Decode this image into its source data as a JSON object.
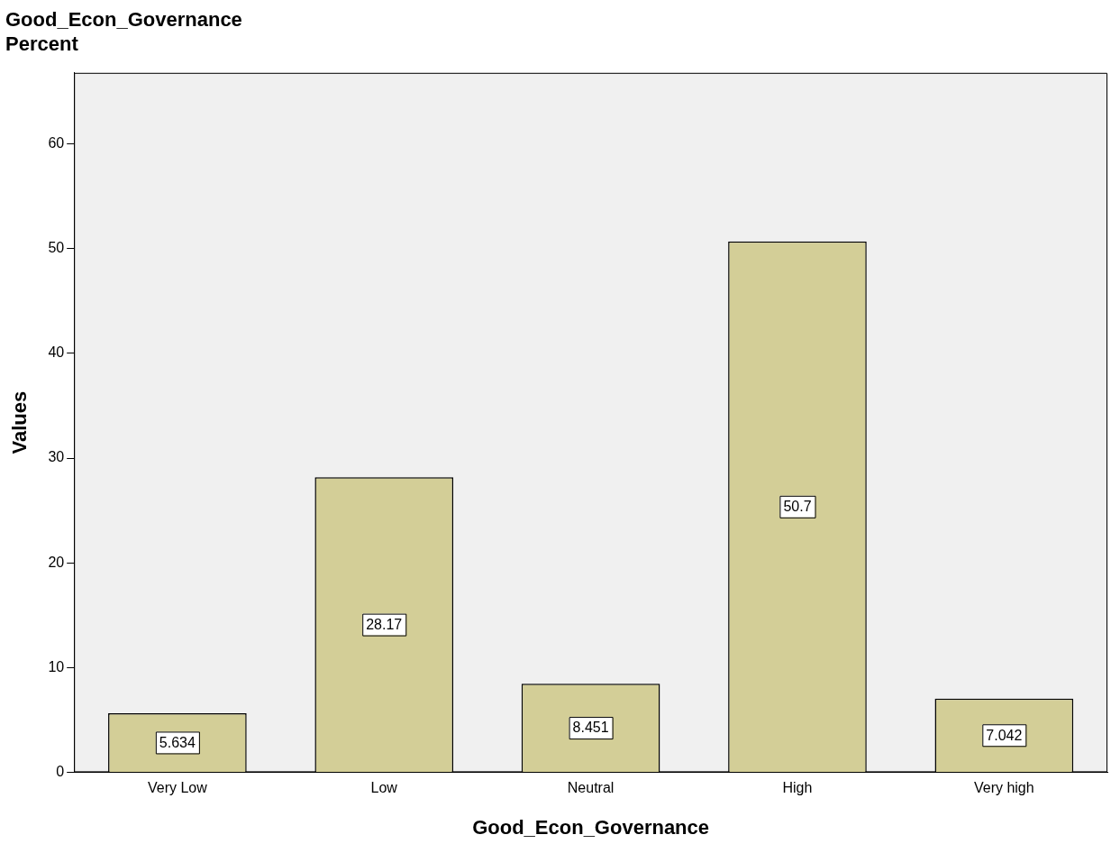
{
  "chart_data": {
    "type": "bar",
    "title": "Good_Econ_Governance",
    "subtitle": "Percent",
    "xlabel": "Good_Econ_Governance",
    "ylabel": "Values",
    "categories": [
      "Very Low",
      "Low",
      "Neutral",
      "High",
      "Very high"
    ],
    "values": [
      5.634,
      28.17,
      8.451,
      50.7,
      7.042
    ],
    "color": "#d3ce97",
    "ylim": [
      0,
      66.8
    ],
    "yticks": [
      0,
      10,
      20,
      30,
      40,
      50,
      60
    ],
    "grid": false,
    "legend": false,
    "data_labels": true
  }
}
